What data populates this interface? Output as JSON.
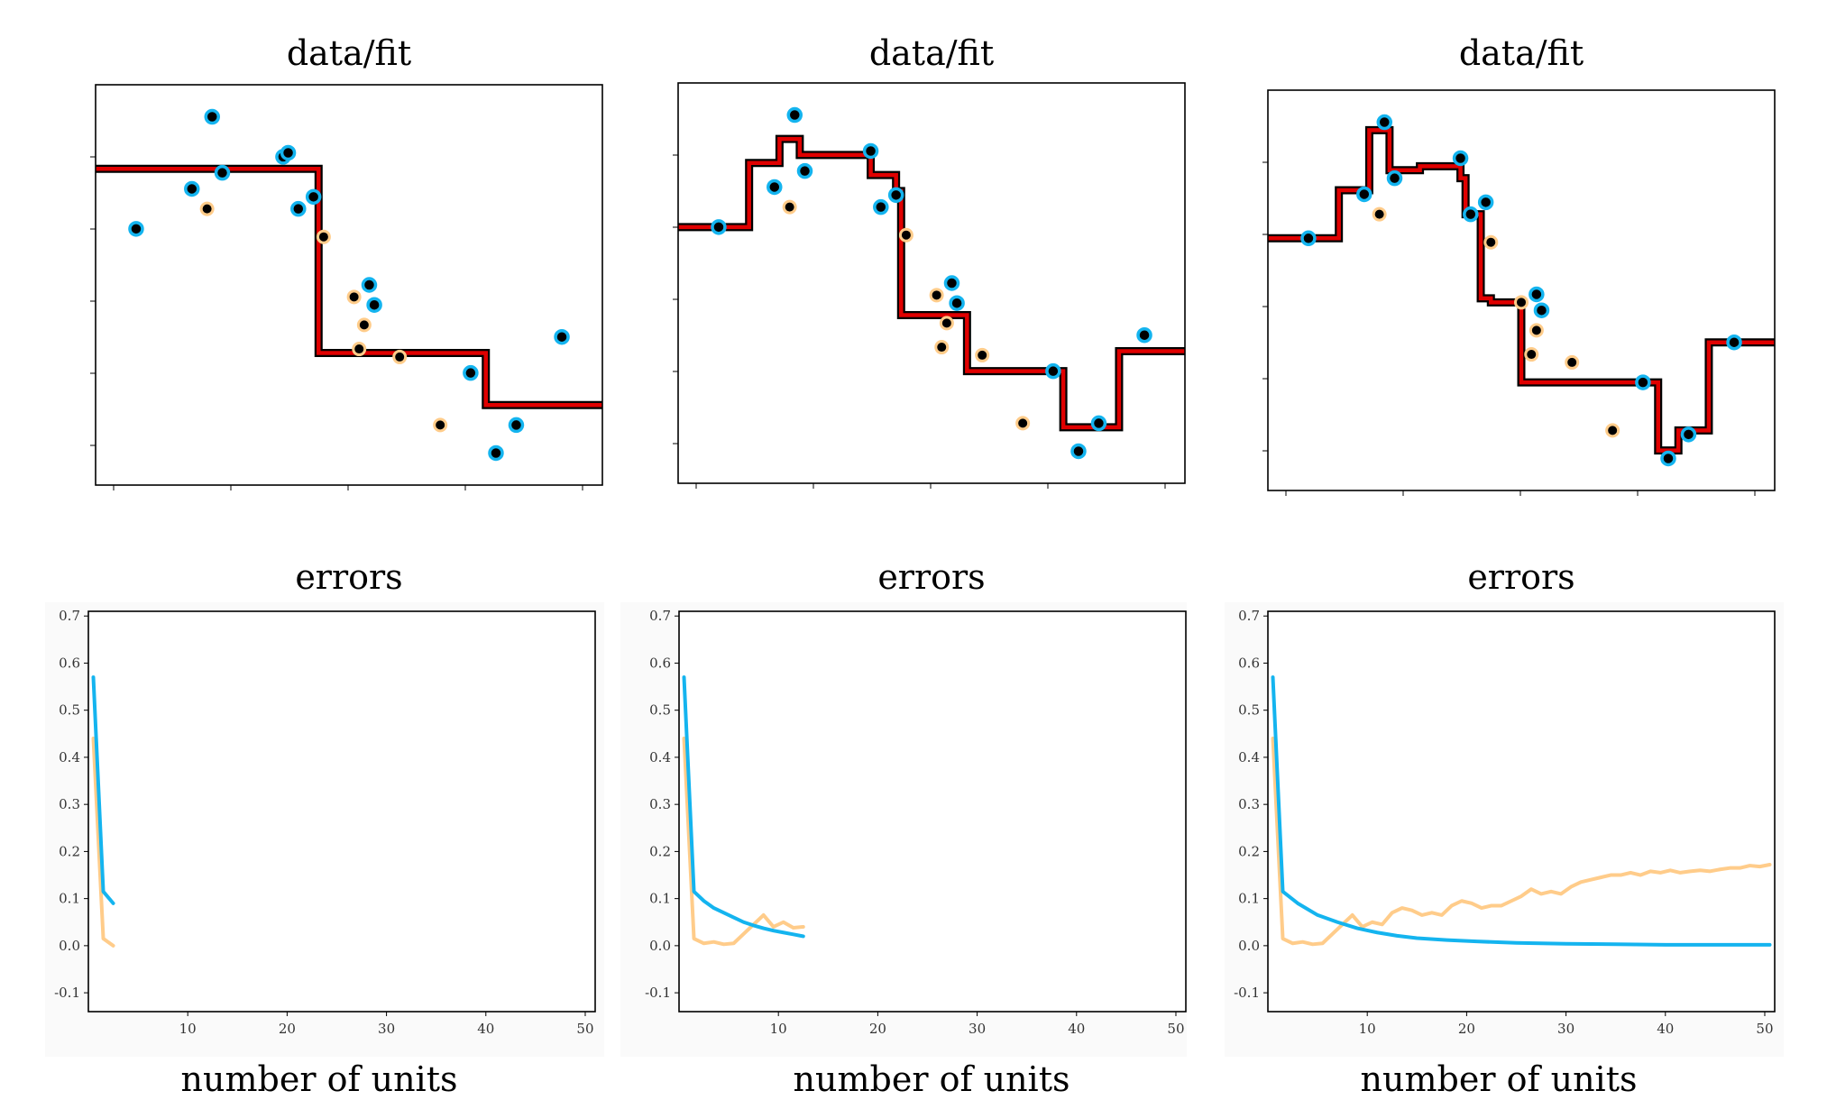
{
  "colors": {
    "train": "#14b4ef",
    "test": "#ffcc8a",
    "fit_inner": "#e00000",
    "fit_outer": "#000000",
    "point_fill": "#000000"
  },
  "fit_panels": [
    {
      "title": "data/fit",
      "chart_data": {
        "type": "scatter",
        "title": "data/fit",
        "xlim": [
          0,
          1
        ],
        "ylim": [
          0,
          1
        ],
        "train_points": [
          [
            0.08,
            0.64
          ],
          [
            0.19,
            0.74
          ],
          [
            0.23,
            0.92
          ],
          [
            0.25,
            0.78
          ],
          [
            0.37,
            0.82
          ],
          [
            0.38,
            0.83
          ],
          [
            0.4,
            0.69
          ],
          [
            0.43,
            0.72
          ],
          [
            0.54,
            0.5
          ],
          [
            0.55,
            0.45
          ],
          [
            0.74,
            0.28
          ],
          [
            0.79,
            0.08
          ],
          [
            0.83,
            0.15
          ],
          [
            0.92,
            0.37
          ]
        ],
        "test_points": [
          [
            0.22,
            0.69
          ],
          [
            0.45,
            0.62
          ],
          [
            0.51,
            0.47
          ],
          [
            0.52,
            0.34
          ],
          [
            0.53,
            0.4
          ],
          [
            0.6,
            0.32
          ],
          [
            0.68,
            0.15
          ]
        ],
        "fit_x": [
          0,
          0.44,
          0.44,
          0.77,
          0.77,
          1
        ],
        "fit_y": [
          0.79,
          0.79,
          0.33,
          0.33,
          0.2,
          0.2
        ]
      }
    },
    {
      "title": "data/fit",
      "chart_data": {
        "type": "scatter",
        "title": "data/fit",
        "xlim": [
          0,
          1
        ],
        "ylim": [
          0,
          1
        ],
        "train_points": [
          [
            0.08,
            0.64
          ],
          [
            0.19,
            0.74
          ],
          [
            0.23,
            0.92
          ],
          [
            0.25,
            0.78
          ],
          [
            0.38,
            0.83
          ],
          [
            0.4,
            0.69
          ],
          [
            0.43,
            0.72
          ],
          [
            0.54,
            0.5
          ],
          [
            0.55,
            0.45
          ],
          [
            0.74,
            0.28
          ],
          [
            0.79,
            0.08
          ],
          [
            0.83,
            0.15
          ],
          [
            0.92,
            0.37
          ]
        ],
        "test_points": [
          [
            0.22,
            0.69
          ],
          [
            0.45,
            0.62
          ],
          [
            0.51,
            0.47
          ],
          [
            0.52,
            0.34
          ],
          [
            0.53,
            0.4
          ],
          [
            0.6,
            0.32
          ],
          [
            0.68,
            0.15
          ]
        ],
        "fit_x": [
          0,
          0.14,
          0.14,
          0.2,
          0.2,
          0.24,
          0.24,
          0.38,
          0.38,
          0.43,
          0.43,
          0.44,
          0.44,
          0.57,
          0.57,
          0.76,
          0.76,
          0.87,
          0.87,
          0.92,
          0.92,
          1
        ],
        "fit_y": [
          0.64,
          0.64,
          0.8,
          0.8,
          0.86,
          0.86,
          0.82,
          0.82,
          0.77,
          0.77,
          0.73,
          0.73,
          0.42,
          0.42,
          0.28,
          0.28,
          0.14,
          0.14,
          0.33,
          0.33,
          0.33,
          0.33
        ]
      }
    },
    {
      "title": "data/fit",
      "chart_data": {
        "type": "scatter",
        "title": "data/fit",
        "xlim": [
          0,
          1
        ],
        "ylim": [
          0,
          1
        ],
        "train_points": [
          [
            0.08,
            0.63
          ],
          [
            0.19,
            0.74
          ],
          [
            0.23,
            0.92
          ],
          [
            0.25,
            0.78
          ],
          [
            0.38,
            0.83
          ],
          [
            0.4,
            0.69
          ],
          [
            0.43,
            0.72
          ],
          [
            0.53,
            0.49
          ],
          [
            0.54,
            0.45
          ],
          [
            0.74,
            0.27
          ],
          [
            0.79,
            0.08
          ],
          [
            0.83,
            0.14
          ],
          [
            0.92,
            0.37
          ]
        ],
        "test_points": [
          [
            0.22,
            0.69
          ],
          [
            0.44,
            0.62
          ],
          [
            0.5,
            0.47
          ],
          [
            0.52,
            0.34
          ],
          [
            0.53,
            0.4
          ],
          [
            0.6,
            0.32
          ],
          [
            0.68,
            0.15
          ]
        ],
        "fit_x": [
          0,
          0.14,
          0.14,
          0.2,
          0.2,
          0.24,
          0.24,
          0.3,
          0.3,
          0.38,
          0.38,
          0.39,
          0.39,
          0.42,
          0.42,
          0.44,
          0.44,
          0.5,
          0.5,
          0.55,
          0.55,
          0.77,
          0.77,
          0.81,
          0.81,
          0.87,
          0.87,
          1
        ],
        "fit_y": [
          0.63,
          0.63,
          0.75,
          0.75,
          0.9,
          0.9,
          0.8,
          0.8,
          0.81,
          0.81,
          0.78,
          0.78,
          0.69,
          0.69,
          0.48,
          0.48,
          0.47,
          0.47,
          0.27,
          0.27,
          0.27,
          0.27,
          0.1,
          0.1,
          0.15,
          0.15,
          0.37,
          0.37
        ]
      }
    }
  ],
  "error_panels": [
    {
      "title": "errors",
      "xlabel": "number of units",
      "chart_data": {
        "type": "line",
        "title": "errors",
        "xlabel": "number of units",
        "ylabel": "",
        "xlim": [
          0,
          51
        ],
        "ylim": [
          -0.14,
          0.71
        ],
        "xticks": [
          10,
          20,
          30,
          40,
          50
        ],
        "yticks": [
          -0.1,
          0.0,
          0.1,
          0.2,
          0.3,
          0.4,
          0.5,
          0.6,
          0.7
        ],
        "series": [
          {
            "x": [
              0.5,
              1.5,
              2.5
            ],
            "values": [
              0.57,
              0.115,
              0.09
            ]
          },
          {
            "x": [
              0.5,
              1.5,
              2.5
            ],
            "values": [
              0.44,
              0.015,
              0.0
            ]
          }
        ]
      }
    },
    {
      "title": "errors",
      "xlabel": "number of units",
      "chart_data": {
        "type": "line",
        "title": "errors",
        "xlabel": "number of units",
        "ylabel": "",
        "xlim": [
          0,
          51
        ],
        "ylim": [
          -0.14,
          0.71
        ],
        "xticks": [
          10,
          20,
          30,
          40,
          50
        ],
        "yticks": [
          -0.1,
          0.0,
          0.1,
          0.2,
          0.3,
          0.4,
          0.5,
          0.6,
          0.7
        ],
        "series": [
          {
            "x": [
              0.5,
              1.5,
              2.5,
              3.5,
              4.5,
              5.5,
              6.5,
              7.5,
              8.5,
              9.5,
              10.5,
              11.5,
              12.5
            ],
            "values": [
              0.57,
              0.115,
              0.095,
              0.08,
              0.07,
              0.06,
              0.05,
              0.043,
              0.037,
              0.032,
              0.028,
              0.024,
              0.02
            ]
          },
          {
            "x": [
              0.5,
              1.5,
              2.5,
              3.5,
              4.5,
              5.5,
              6.5,
              7.5,
              8.5,
              9.5,
              10.5,
              11.5,
              12.5
            ],
            "values": [
              0.44,
              0.015,
              0.005,
              0.008,
              0.003,
              0.005,
              0.025,
              0.045,
              0.065,
              0.04,
              0.05,
              0.038,
              0.04
            ]
          }
        ]
      }
    },
    {
      "title": "errors",
      "xlabel": "number of units",
      "chart_data": {
        "type": "line",
        "title": "errors",
        "xlabel": "number of units",
        "ylabel": "",
        "xlim": [
          0,
          51
        ],
        "ylim": [
          -0.14,
          0.71
        ],
        "xticks": [
          10,
          20,
          30,
          40,
          50
        ],
        "yticks": [
          -0.1,
          0.0,
          0.1,
          0.2,
          0.3,
          0.4,
          0.5,
          0.6,
          0.7
        ],
        "series": [
          {
            "x": [
              0.5,
              1.5,
              3,
              5,
              7,
              9,
              11,
              13,
              15,
              18,
              21,
              25,
              30,
              35,
              40,
              45,
              50.5
            ],
            "values": [
              0.57,
              0.115,
              0.09,
              0.065,
              0.05,
              0.037,
              0.028,
              0.021,
              0.016,
              0.012,
              0.009,
              0.006,
              0.004,
              0.003,
              0.002,
              0.002,
              0.002
            ]
          },
          {
            "x": [
              0.5,
              1.5,
              2.5,
              3.5,
              4.5,
              5.5,
              6.5,
              7.5,
              8.5,
              9.5,
              10.5,
              11.5,
              12.5,
              13.5,
              14.5,
              15.5,
              16.5,
              17.5,
              18.5,
              19.5,
              20.5,
              21.5,
              22.5,
              23.5,
              24.5,
              25.5,
              26.5,
              27.5,
              28.5,
              29.5,
              30.5,
              31.5,
              32.5,
              33.5,
              34.5,
              35.5,
              36.5,
              37.5,
              38.5,
              39.5,
              40.5,
              41.5,
              42.5,
              43.5,
              44.5,
              45.5,
              46.5,
              47.5,
              48.5,
              49.5,
              50.5
            ],
            "values": [
              0.44,
              0.015,
              0.005,
              0.008,
              0.003,
              0.005,
              0.025,
              0.045,
              0.065,
              0.04,
              0.05,
              0.045,
              0.07,
              0.08,
              0.075,
              0.065,
              0.07,
              0.065,
              0.085,
              0.095,
              0.09,
              0.08,
              0.085,
              0.085,
              0.095,
              0.105,
              0.12,
              0.11,
              0.115,
              0.11,
              0.125,
              0.135,
              0.14,
              0.145,
              0.15,
              0.15,
              0.155,
              0.15,
              0.158,
              0.155,
              0.16,
              0.155,
              0.158,
              0.16,
              0.158,
              0.162,
              0.165,
              0.165,
              0.17,
              0.168,
              0.172
            ]
          }
        ]
      }
    }
  ]
}
